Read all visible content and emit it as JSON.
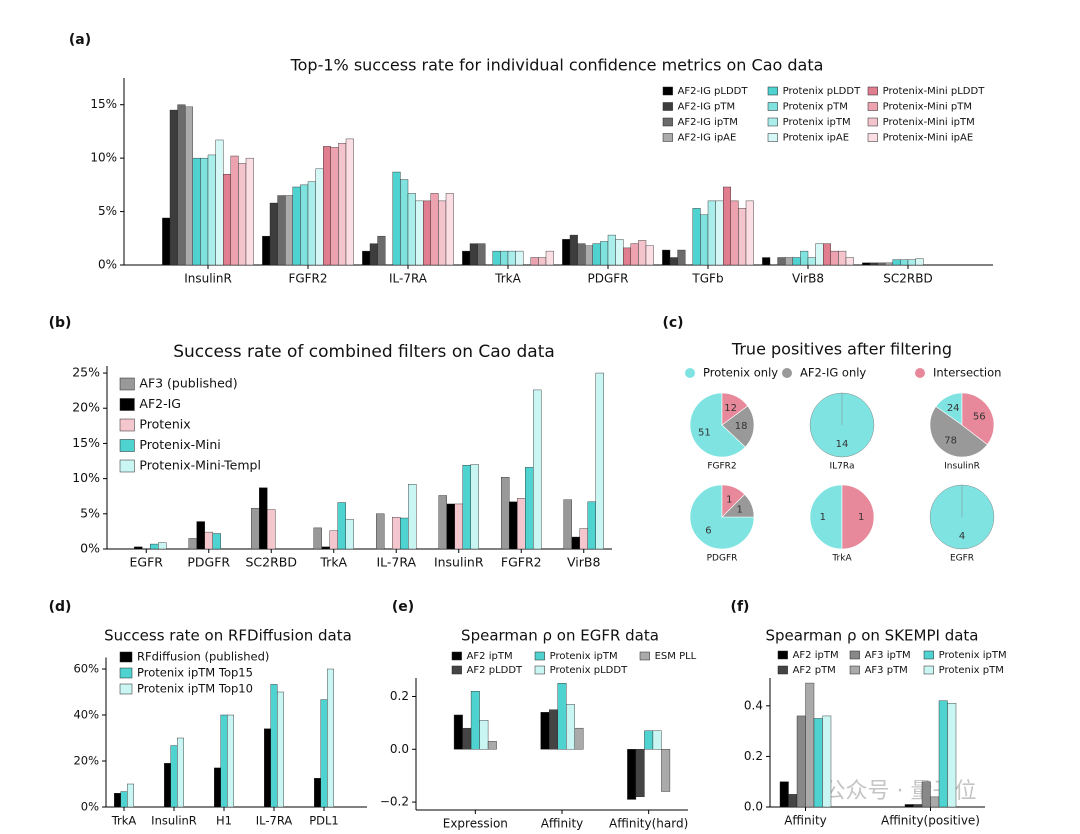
{
  "watermark": "公众号 · 量子位",
  "chart_data": [
    {
      "type": "bar",
      "label": "(a)",
      "title": "Top-1% success rate for individual confidence metrics on Cao data",
      "categories": [
        "InsulinR",
        "FGFR2",
        "IL-7RA",
        "TrkA",
        "PDGFR",
        "TGFb",
        "VirB8",
        "SC2RBD"
      ],
      "series": [
        {
          "name": "AF2-IG pLDDT",
          "color": "#000000",
          "values": [
            4.4,
            2.7,
            1.3,
            1.3,
            2.4,
            1.4,
            0.7,
            0.2
          ]
        },
        {
          "name": "AF2-IG pTM",
          "color": "#3d3d3d",
          "values": [
            14.5,
            5.8,
            2.0,
            2.0,
            2.8,
            0.7,
            0,
            0.2
          ]
        },
        {
          "name": "AF2-IG ipTM",
          "color": "#6b6b6b",
          "values": [
            15.0,
            6.5,
            2.7,
            2.0,
            2.0,
            1.4,
            0.7,
            0.2
          ]
        },
        {
          "name": "AF2-IG ipAE",
          "color": "#ababab",
          "values": [
            14.8,
            6.5,
            0,
            0,
            1.8,
            0,
            0.7,
            0.2
          ]
        },
        {
          "name": "Protenix pLDDT",
          "color": "#4fd3d0",
          "values": [
            10.0,
            7.3,
            8.7,
            1.3,
            2.0,
            5.3,
            0.7,
            0.5
          ]
        },
        {
          "name": "Protenix pTM",
          "color": "#7fe2df",
          "values": [
            10.0,
            7.5,
            8.0,
            1.3,
            2.2,
            4.7,
            1.3,
            0.5
          ]
        },
        {
          "name": "Protenix ipTM",
          "color": "#aaeeec",
          "values": [
            10.3,
            7.8,
            6.7,
            1.3,
            2.8,
            6.0,
            0.7,
            0.5
          ]
        },
        {
          "name": "Protenix ipAE",
          "color": "#d5f8f7",
          "values": [
            11.7,
            9.0,
            6.0,
            1.3,
            2.4,
            6.0,
            2.0,
            0.6
          ]
        },
        {
          "name": "Protenix-Mini pLDDT",
          "color": "#e07d8f",
          "values": [
            8.5,
            11.1,
            6.0,
            0,
            1.6,
            7.3,
            2.0,
            0
          ]
        },
        {
          "name": "Protenix-Mini pTM",
          "color": "#eca2af",
          "values": [
            10.2,
            11.0,
            6.7,
            0.7,
            2.0,
            6.0,
            1.3,
            0
          ]
        },
        {
          "name": "Protenix-Mini ipTM",
          "color": "#f4c4cc",
          "values": [
            9.5,
            11.4,
            6.0,
            0.7,
            2.3,
            5.3,
            1.3,
            0
          ]
        },
        {
          "name": "Protenix-Mini ipAE",
          "color": "#fadee3",
          "values": [
            10.0,
            11.8,
            6.7,
            1.3,
            1.8,
            6.0,
            0.7,
            0
          ]
        }
      ],
      "ylim": [
        0,
        17.5
      ],
      "yticks": [
        {
          "value": 0,
          "label": "0%"
        },
        {
          "value": 5,
          "label": "5%"
        },
        {
          "value": 10,
          "label": "10%"
        },
        {
          "value": 15,
          "label": "15%"
        }
      ]
    },
    {
      "type": "bar",
      "label": "(b)",
      "title": "Success rate of combined filters on Cao data",
      "categories": [
        "EGFR",
        "PDGFR",
        "SC2RBD",
        "TrkA",
        "IL-7RA",
        "InsulinR",
        "FGFR2",
        "VirB8"
      ],
      "series": [
        {
          "name": "AF3 (published)",
          "color": "#999999",
          "values": [
            0,
            1.5,
            5.8,
            3.0,
            5.0,
            7.6,
            10.2,
            7.0
          ]
        },
        {
          "name": "AF2-IG",
          "color": "#000000",
          "values": [
            0.3,
            3.9,
            8.7,
            0.3,
            0,
            6.4,
            6.7,
            1.7
          ]
        },
        {
          "name": "Protenix",
          "color": "#f4c6cd",
          "values": [
            0,
            2.4,
            5.6,
            2.6,
            4.5,
            6.4,
            7.2,
            2.9
          ]
        },
        {
          "name": "Protenix-Mini",
          "color": "#4fd3d0",
          "values": [
            0.7,
            2.2,
            0,
            6.6,
            4.4,
            11.9,
            11.6,
            6.7
          ]
        },
        {
          "name": "Protenix-Mini-Templ",
          "color": "#c9f5f3",
          "values": [
            0.9,
            0,
            0,
            4.2,
            9.2,
            12.0,
            22.6,
            25.0
          ]
        }
      ],
      "ylim": [
        0,
        26
      ],
      "yticks": [
        {
          "value": 0,
          "label": "0%"
        },
        {
          "value": 5,
          "label": "5%"
        },
        {
          "value": 10,
          "label": "10%"
        },
        {
          "value": 15,
          "label": "15%"
        },
        {
          "value": 20,
          "label": "20%"
        },
        {
          "value": 25,
          "label": "25%"
        }
      ]
    },
    {
      "type": "pie",
      "label": "(c)",
      "title": "True positives after filtering",
      "categories": [
        "Protenix only",
        "AF2-IG only",
        "Intersection"
      ],
      "colors": [
        "#7fe3e2",
        "#999999",
        "#e8899b"
      ],
      "pies": [
        {
          "name": "FGFR2",
          "values": [
            51,
            18,
            12
          ]
        },
        {
          "name": "IL7Ra",
          "values": [
            14,
            0,
            0
          ]
        },
        {
          "name": "InsulinR",
          "values": [
            24,
            78,
            56
          ]
        },
        {
          "name": "PDGFR",
          "values": [
            6,
            1,
            1
          ]
        },
        {
          "name": "TrkA",
          "values": [
            1,
            0,
            1
          ]
        },
        {
          "name": "EGFR",
          "values": [
            4,
            0,
            0
          ]
        }
      ]
    },
    {
      "type": "bar",
      "label": "(d)",
      "title": "Success rate on RFDiffusion data",
      "categories": [
        "TrkA",
        "InsulinR",
        "H1",
        "IL-7RA",
        "PDL1"
      ],
      "series": [
        {
          "name": "RFdiffusion (published)",
          "color": "#000000",
          "values": [
            6,
            19,
            17,
            34,
            12.5
          ]
        },
        {
          "name": "Protenix ipTM Top15",
          "color": "#4fd3d0",
          "values": [
            6.7,
            26.7,
            40,
            53.3,
            46.7
          ]
        },
        {
          "name": "Protenix ipTM Top10",
          "color": "#c9f5f3",
          "values": [
            10,
            30,
            40,
            50,
            60
          ]
        }
      ],
      "ylim": [
        0,
        65
      ],
      "yticks": [
        {
          "value": 0,
          "label": "0%"
        },
        {
          "value": 20,
          "label": "20%"
        },
        {
          "value": 40,
          "label": "40%"
        },
        {
          "value": 60,
          "label": "60%"
        }
      ]
    },
    {
      "type": "bar",
      "label": "(e)",
      "title": "Spearman ρ on EGFR data",
      "categories": [
        "Expression",
        "Affinity",
        "Affinity(hard)"
      ],
      "series": [
        {
          "name": "AF2 ipTM",
          "color": "#000000",
          "values": [
            0.13,
            0.14,
            -0.19
          ]
        },
        {
          "name": "AF2 pLDDT",
          "color": "#444444",
          "values": [
            0.08,
            0.15,
            -0.18
          ]
        },
        {
          "name": "Protenix ipTM",
          "color": "#4fd3d0",
          "values": [
            0.22,
            0.25,
            0.07
          ]
        },
        {
          "name": "Protenix pLDDT",
          "color": "#c9f5f3",
          "values": [
            0.11,
            0.17,
            0.07
          ]
        },
        {
          "name": "ESM PLL",
          "color": "#aaaaaa",
          "values": [
            0.03,
            0.08,
            -0.16
          ]
        }
      ],
      "ylim": [
        -0.23,
        0.27
      ],
      "yticks": [
        {
          "value": -0.2,
          "label": "−0.2"
        },
        {
          "value": 0,
          "label": "0.0"
        },
        0.2
      ]
    },
    {
      "type": "bar",
      "label": "(f)",
      "title": "Spearman ρ on SKEMPI data",
      "categories": [
        "Affinity",
        "Affinity(positive)"
      ],
      "series": [
        {
          "name": "AF2 ipTM",
          "color": "#000000",
          "values": [
            0.1,
            0.01
          ]
        },
        {
          "name": "AF2 pTM",
          "color": "#444444",
          "values": [
            0.05,
            0.01
          ]
        },
        {
          "name": "AF3 ipTM",
          "color": "#888888",
          "values": [
            0.36,
            0.1
          ]
        },
        {
          "name": "AF3 pTM",
          "color": "#aaaaaa",
          "values": [
            0.49,
            0.04
          ]
        },
        {
          "name": "Protenix ipTM",
          "color": "#4fd3d0",
          "values": [
            0.35,
            0.42
          ]
        },
        {
          "name": "Protenix pTM",
          "color": "#c9f5f3",
          "values": [
            0.36,
            0.41
          ]
        }
      ],
      "ylim": [
        0,
        0.51
      ],
      "yticks": [
        {
          "value": 0,
          "label": "0.0"
        },
        0.2,
        0.4
      ]
    }
  ]
}
